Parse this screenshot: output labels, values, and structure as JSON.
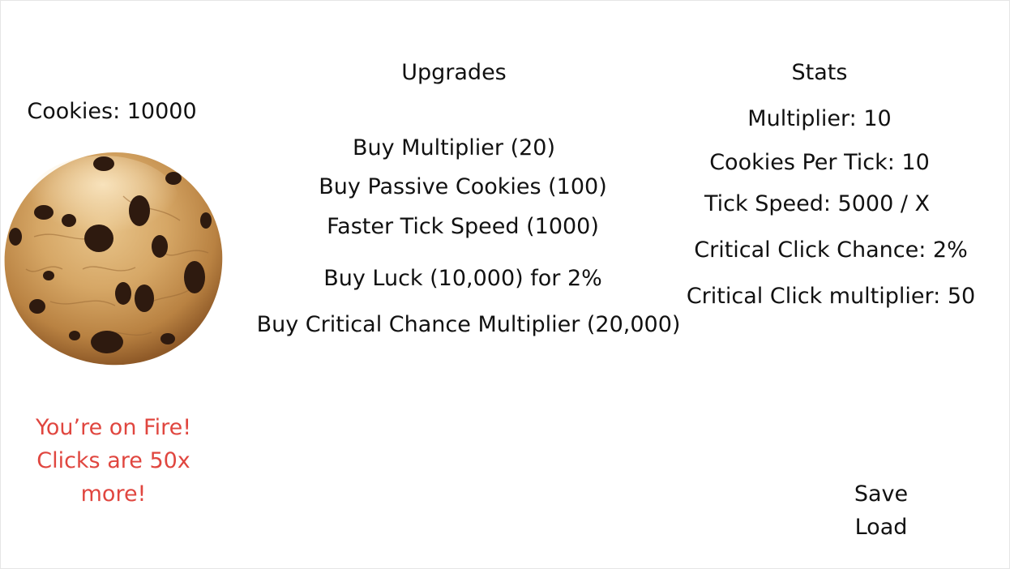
{
  "colors": {
    "text": "#111111",
    "fire_text": "#e0463f",
    "background": "#ffffff"
  },
  "cookie": {
    "count_text": "Cookies: 10000",
    "image": "chocolate-chip-cookie"
  },
  "fire_message": {
    "lines": [
      "You’re on Fire!",
      "Clicks are 50x",
      "more!"
    ]
  },
  "upgrades": {
    "title": "Upgrades",
    "items": [
      "Buy Multiplier (20)",
      "Buy Passive Cookies (100)",
      "Faster Tick Speed (1000)",
      "Buy Luck (10,000) for 2%",
      "Buy Critical Chance Multiplier (20,000)"
    ]
  },
  "stats": {
    "title": "Stats",
    "items": [
      "Multiplier: 10",
      "Cookies Per Tick: 10",
      "Tick Speed: 5000 / X",
      "Critical Click Chance: 2%",
      "Critical Click multiplier: 50"
    ]
  },
  "actions": {
    "save_label": "Save",
    "load_label": "Load"
  }
}
